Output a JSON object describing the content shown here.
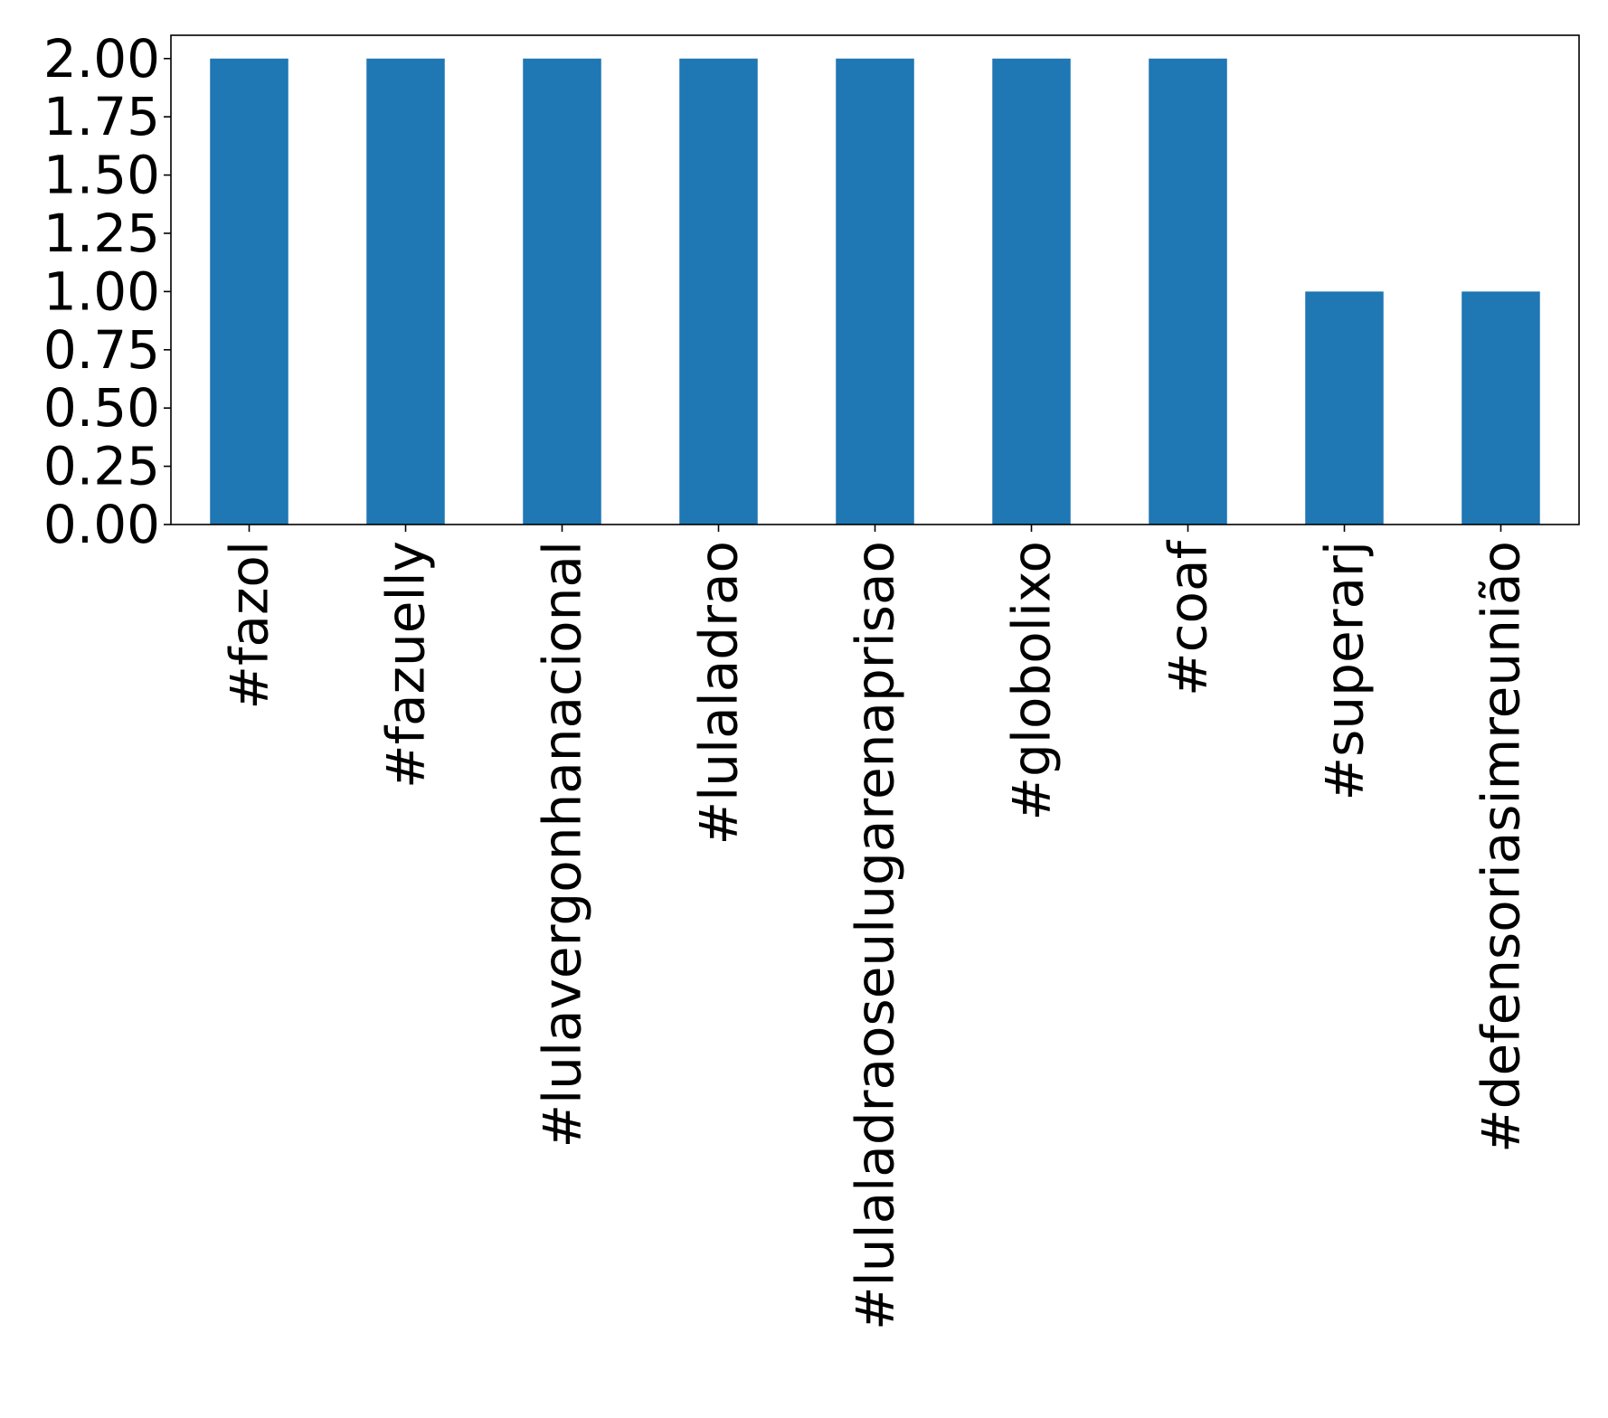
{
  "chart_data": {
    "type": "bar",
    "categories": [
      "#fazol",
      "#fazuelly",
      "#lulavergonhanacional",
      "#lulaladrao",
      "#lulaladraoseulugarenaprisao",
      "#globolixo",
      "#coaf",
      "#superarj",
      "#defensoriasimreunião"
    ],
    "values": [
      2,
      2,
      2,
      2,
      2,
      2,
      2,
      1,
      1
    ],
    "ylim": [
      0,
      2.1
    ],
    "yticks": [
      "0.00",
      "0.25",
      "0.50",
      "0.75",
      "1.00",
      "1.25",
      "1.50",
      "1.75",
      "2.00"
    ],
    "bar_color": "#1f77b4",
    "grid": false,
    "title": "",
    "xlabel": "",
    "ylabel": ""
  }
}
